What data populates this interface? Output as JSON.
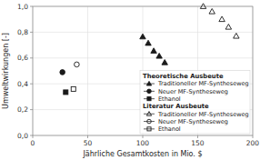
{
  "chart_data": {
    "type": "scatter",
    "xlabel": "Jährliche Gesamtkosten in Mio. $",
    "ylabel": "Umweltwirkungen [-]",
    "xlim": [
      0,
      200
    ],
    "ylim": [
      0.0,
      1.0
    ],
    "xticks": [
      0,
      50,
      100,
      150,
      200
    ],
    "yticks": [
      {
        "value": 0.0,
        "label": "0,0"
      },
      {
        "value": 0.2,
        "label": "0,2"
      },
      {
        "value": 0.4,
        "label": "0,4"
      },
      {
        "value": 0.6,
        "label": "0,6"
      },
      {
        "value": 0.8,
        "label": "0,8"
      },
      {
        "value": 1.0,
        "label": "1,0"
      }
    ],
    "grid": true,
    "series": [
      {
        "group": "Theoretische Ausbeute",
        "name": "Traditioneller MF-Syntheseweg",
        "marker": "triangle",
        "color": "#1a1a1a",
        "x": [
          100,
          105,
          110,
          115,
          120
        ],
        "values": [
          0.765,
          0.715,
          0.655,
          0.615,
          0.565
        ]
      },
      {
        "group": "Theoretische Ausbeute",
        "name": "Neuer MF-Syntheseweg",
        "marker": "circle",
        "color": "#1a1a1a",
        "x": [
          27
        ],
        "values": [
          0.49
        ]
      },
      {
        "group": "Theoretische Ausbeute",
        "name": "Ethanol",
        "marker": "square",
        "color": "#1a1a1a",
        "x": [
          30
        ],
        "values": [
          0.335
        ]
      },
      {
        "group": "Literatur Ausbeute",
        "name": "Traditioneller MF-Syntheseweg",
        "marker": "open-triangle",
        "color": "#1a1a1a",
        "x": [
          155,
          163,
          172,
          178,
          185
        ],
        "values": [
          1.0,
          0.96,
          0.9,
          0.84,
          0.77
        ]
      },
      {
        "group": "Literatur Ausbeute",
        "name": "Neuer MF-Syntheseweg",
        "marker": "open-circle",
        "color": "#1a1a1a",
        "x": [
          40
        ],
        "values": [
          0.55
        ]
      },
      {
        "group": "Literatur Ausbeute",
        "name": "Ethanol",
        "marker": "open-square",
        "color": "#1a1a1a",
        "x": [
          37
        ],
        "values": [
          0.36
        ]
      }
    ]
  }
}
